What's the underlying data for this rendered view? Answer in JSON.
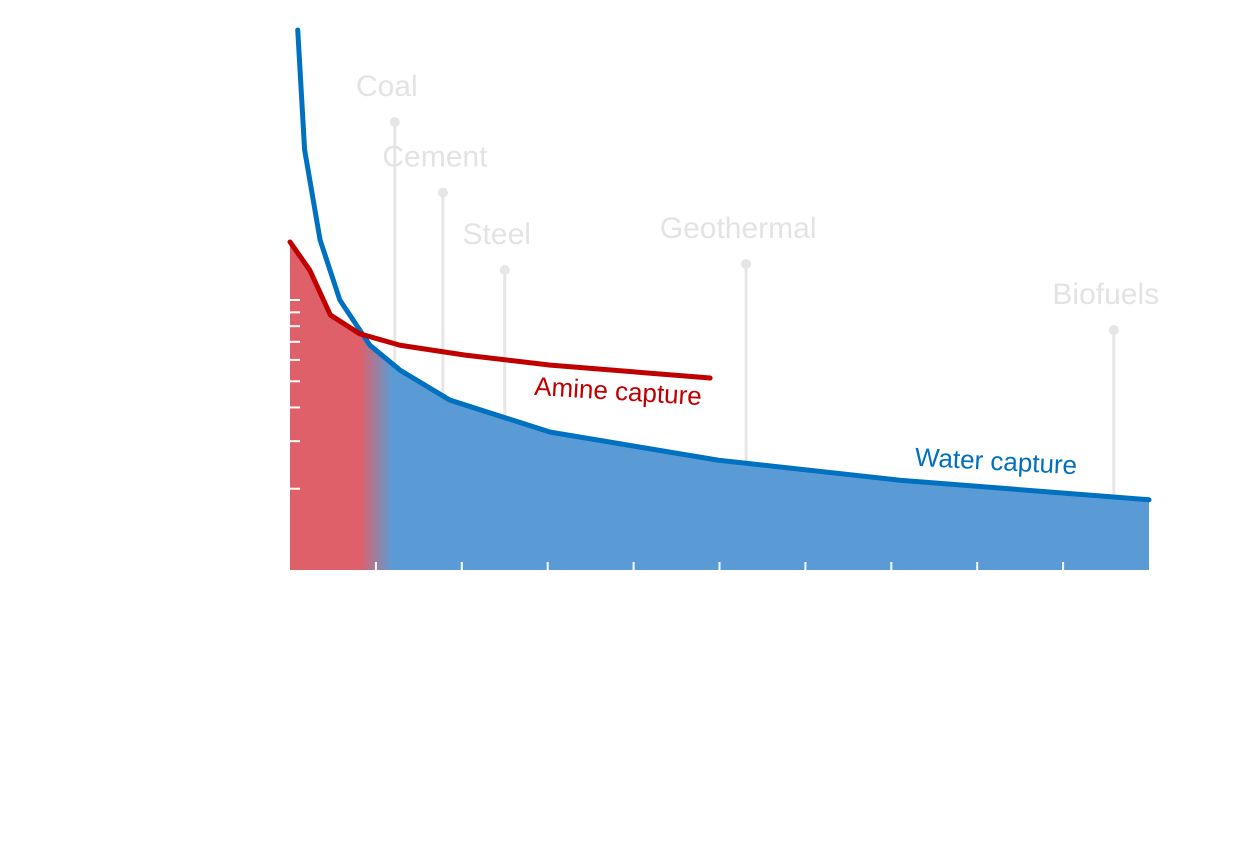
{
  "chart_data": {
    "type": "line",
    "log_y": true,
    "xlim": [
      0,
      10
    ],
    "xticks": [
      1,
      2,
      3,
      4,
      5,
      6,
      7,
      8,
      9
    ],
    "ylim": [
      1,
      100
    ],
    "yticks": [
      2,
      3,
      4,
      5,
      6,
      7,
      8,
      9,
      10
    ],
    "series": [
      {
        "name": "Water capture",
        "color": "#0070c0",
        "fill": "#5b9bd5",
        "x": [
          0.09,
          0.17,
          0.35,
          0.58,
          0.93,
          1.28,
          1.86,
          3.03,
          4.99,
          7.1,
          10
        ],
        "values": [
          100,
          36,
          16.7,
          10,
          6.8,
          5.5,
          4.26,
          3.24,
          2.55,
          2.15,
          1.82
        ]
      },
      {
        "name": "Amine capture",
        "color": "#c00000",
        "fill": "#e0606a",
        "x": [
          0,
          0.23,
          0.47,
          0.81,
          1.28,
          2.04,
          3.03,
          4.89
        ],
        "values": [
          16.4,
          12.9,
          8.8,
          7.5,
          6.8,
          6.25,
          5.74,
          5.14
        ]
      }
    ],
    "annotations": [
      {
        "text": "Coal",
        "x": 1.22,
        "y": 45.6
      },
      {
        "text": "Cement",
        "x": 1.78,
        "y": 25
      },
      {
        "text": "Steel",
        "x": 2.5,
        "y": 12.9
      },
      {
        "text": "Geothermal",
        "x": 5.31,
        "y": 13.6
      },
      {
        "text": "Biofuels",
        "x": 9.59,
        "y": 7.74
      }
    ]
  }
}
